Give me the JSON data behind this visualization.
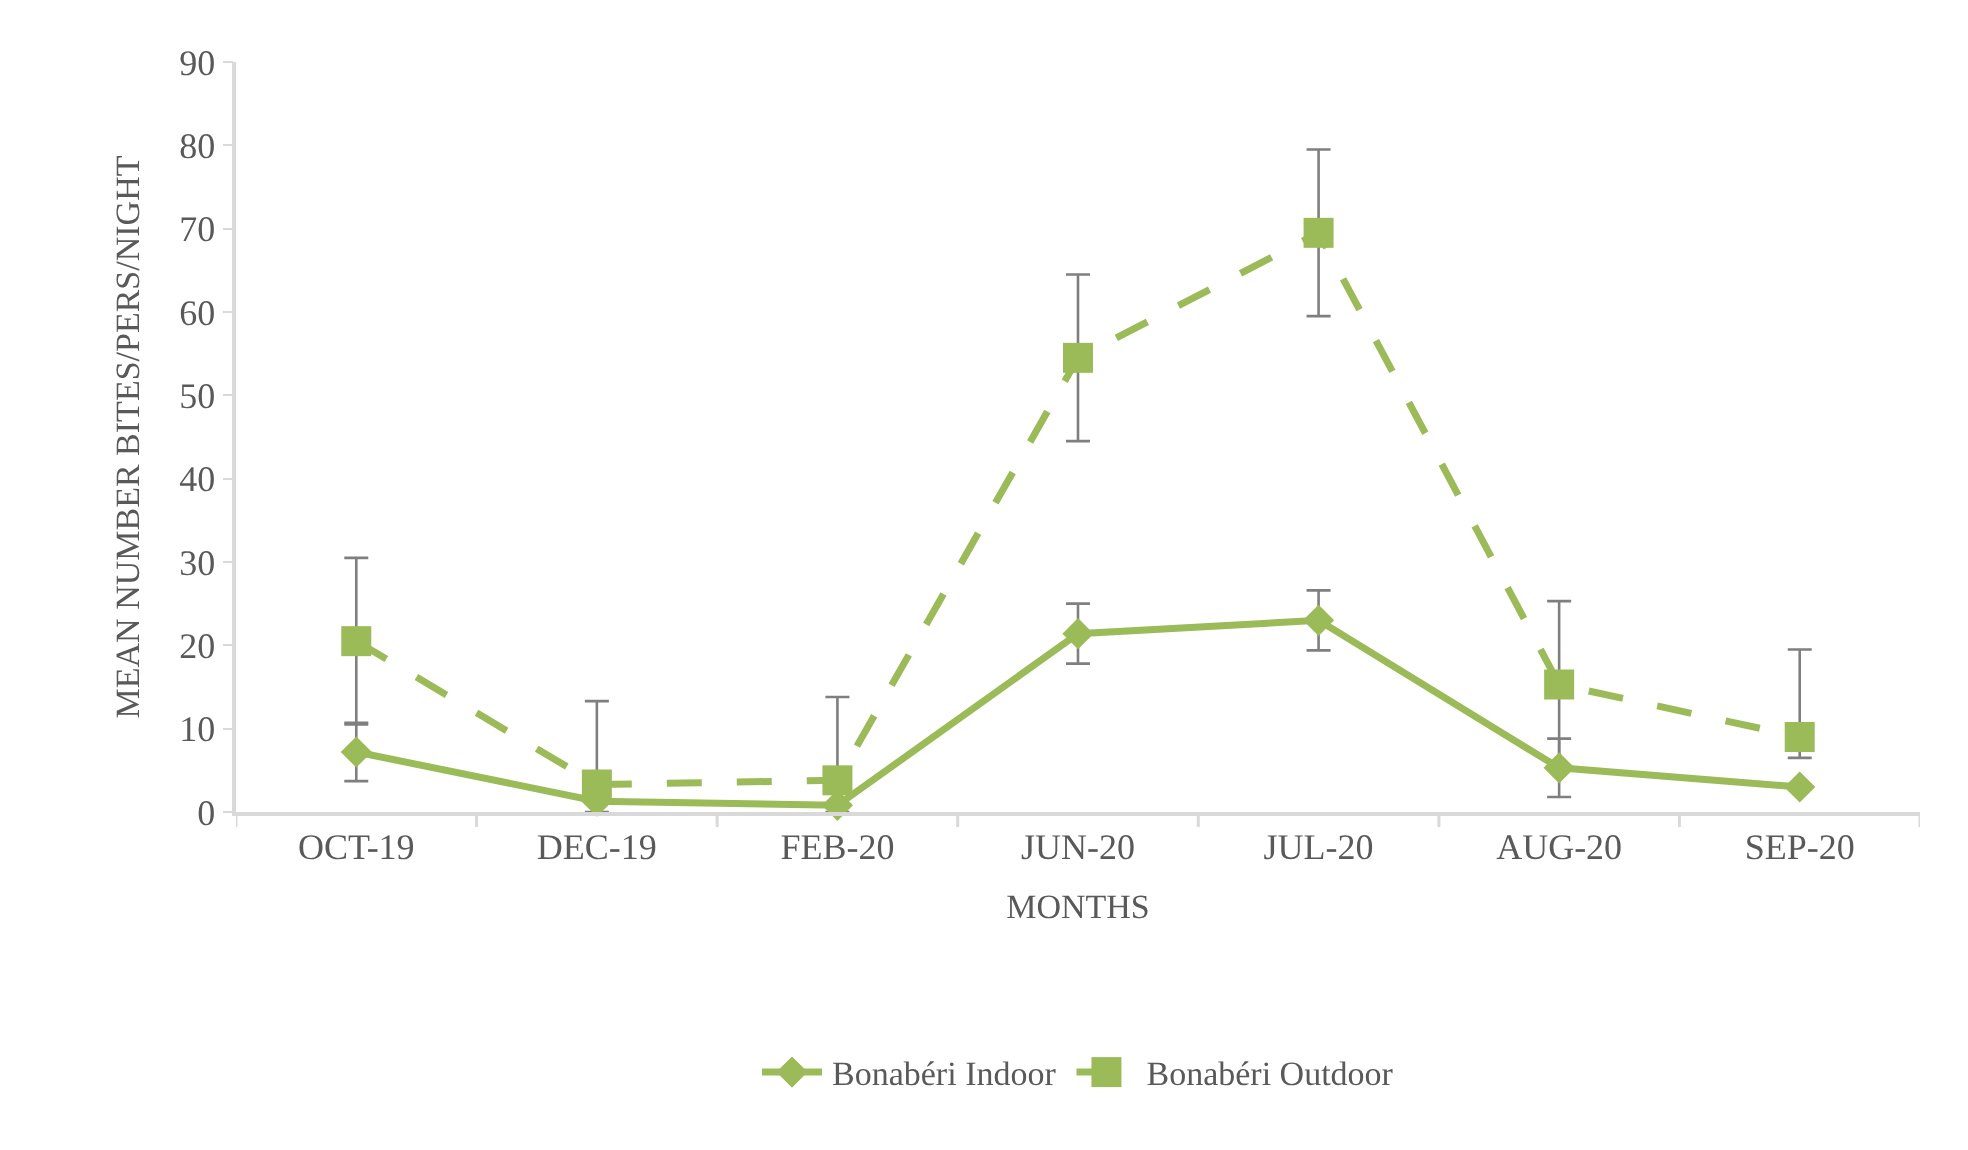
{
  "chart_data": {
    "type": "line",
    "xlabel": "MONTHS",
    "ylabel": "MEAN NUMBER BITES/PERS/NIGHT",
    "categories": [
      "OCT-19",
      "DEC-19",
      "FEB-20",
      "JUN-20",
      "JUL-20",
      "AUG-20",
      "SEP-20"
    ],
    "series": [
      {
        "name": "Bonabéri Indoor",
        "color": "#9bbb59",
        "marker": "diamond",
        "line_style": "solid",
        "values": [
          7.2,
          1.3,
          0.8,
          21.4,
          23,
          5.3,
          3
        ],
        "errors": [
          3.5,
          null,
          null,
          3.6,
          3.6,
          3.5,
          null
        ]
      },
      {
        "name": "Bonabéri Outdoor",
        "color": "#9bbb59",
        "marker": "square",
        "line_style": "dashed",
        "values": [
          20.5,
          3.3,
          3.8,
          54.5,
          69.5,
          15.3,
          9
        ],
        "errors": [
          10,
          [
            0,
            13.3
          ],
          [
            0,
            13.8
          ],
          10,
          10,
          10,
          [
            6.5,
            19.5
          ]
        ]
      }
    ],
    "ylim": [
      0,
      90
    ],
    "yticks": [
      0,
      10,
      20,
      30,
      40,
      50,
      60,
      70,
      80,
      90
    ],
    "grid": false,
    "legend": "bottom"
  }
}
